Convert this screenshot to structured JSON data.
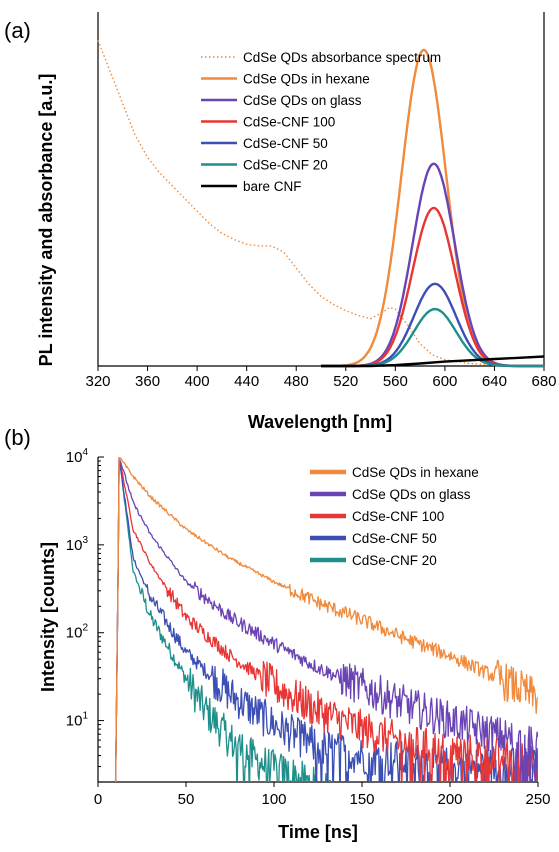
{
  "chart_data": [
    {
      "panel_label": "(a)",
      "type": "line",
      "xlabel": "Wavelength [nm]",
      "ylabel": "PL intensity and absorbance [a.u.]",
      "xlim": [
        320,
        680
      ],
      "ylim": [
        0,
        1.12
      ],
      "xticks": [
        320,
        360,
        400,
        440,
        480,
        520,
        560,
        600,
        640,
        680
      ],
      "y_tick_labels": false,
      "grid": false,
      "legend_position": "top-right",
      "series": [
        {
          "name": "CdSe QDs absorbance spectrum",
          "color": "#f08a3c",
          "style": "dotted",
          "x": [
            320,
            330,
            340,
            350,
            360,
            370,
            380,
            390,
            400,
            410,
            420,
            430,
            440,
            450,
            460,
            470,
            480,
            490,
            500,
            510,
            520,
            530,
            540,
            550,
            555,
            560,
            570,
            580,
            590,
            600,
            620,
            640,
            660,
            680
          ],
          "y": [
            1.03,
            0.93,
            0.83,
            0.73,
            0.66,
            0.61,
            0.57,
            0.53,
            0.49,
            0.45,
            0.42,
            0.4,
            0.385,
            0.38,
            0.38,
            0.36,
            0.31,
            0.26,
            0.22,
            0.195,
            0.175,
            0.16,
            0.15,
            0.17,
            0.185,
            0.18,
            0.13,
            0.07,
            0.035,
            0.02,
            0.008,
            0.003,
            0.0,
            0.0
          ]
        },
        {
          "name": "CdSe QDs in hexane",
          "color": "#f08a3c",
          "style": "solid",
          "peak": 1.0,
          "center": 583,
          "sigma": 18
        },
        {
          "name": "CdSe QDs on glass",
          "color": "#6a44b4",
          "style": "solid",
          "peak": 0.64,
          "center": 591,
          "sigma": 17
        },
        {
          "name": "CdSe-CNF 100",
          "color": "#e83535",
          "style": "solid",
          "peak": 0.5,
          "center": 591,
          "sigma": 17
        },
        {
          "name": "CdSe-CNF 50",
          "color": "#3c4fb4",
          "style": "solid",
          "peak": 0.26,
          "center": 592,
          "sigma": 17
        },
        {
          "name": "CdSe-CNF 20",
          "color": "#1f8f8c",
          "style": "solid",
          "peak": 0.18,
          "center": 592,
          "sigma": 17
        },
        {
          "name": "bare CNF",
          "color": "#000000",
          "style": "solid",
          "x": [
            500,
            540,
            560,
            580,
            600,
            620,
            640,
            660,
            680
          ],
          "y": [
            0.0,
            0.0,
            0.003,
            0.008,
            0.014,
            0.018,
            0.022,
            0.026,
            0.03
          ]
        }
      ]
    },
    {
      "panel_label": "(b)",
      "type": "line",
      "xlabel": "Time [ns]",
      "ylabel": "Intensity [counts]",
      "xlim": [
        0,
        250
      ],
      "ylim": [
        2,
        10000
      ],
      "yscale": "log",
      "xticks": [
        0,
        50,
        100,
        150,
        200,
        250
      ],
      "yticks": [
        {
          "base": "10",
          "exp": "1",
          "value": 10
        },
        {
          "base": "10",
          "exp": "2",
          "value": 100
        },
        {
          "base": "10",
          "exp": "3",
          "value": 1000
        },
        {
          "base": "10",
          "exp": "4",
          "value": 10000
        }
      ],
      "grid": false,
      "legend_position": "top-right",
      "series": [
        {
          "name": "CdSe QDs in hexane",
          "color": "#f08a3c",
          "x": [
            12,
            20,
            30,
            50,
            75,
            100,
            125,
            150,
            175,
            200,
            225,
            250
          ],
          "y": [
            10000,
            6000,
            3500,
            1500,
            700,
            380,
            220,
            140,
            85,
            55,
            32,
            18
          ]
        },
        {
          "name": "CdSe QDs on glass",
          "color": "#6a44b4",
          "x": [
            12,
            20,
            30,
            50,
            75,
            100,
            125,
            150,
            175,
            200,
            225,
            250
          ],
          "y": [
            10000,
            3000,
            1300,
            380,
            150,
            75,
            40,
            24,
            15,
            10,
            7,
            5
          ]
        },
        {
          "name": "CdSe-CNF 100",
          "color": "#e83535",
          "x": [
            12,
            20,
            30,
            50,
            75,
            100,
            125,
            150,
            175,
            200,
            225,
            250
          ],
          "y": [
            10000,
            1500,
            600,
            150,
            55,
            25,
            13,
            8,
            5.5,
            4.5,
            4,
            3.5
          ]
        },
        {
          "name": "CdSe-CNF 50",
          "color": "#3c4fb4",
          "x": [
            12,
            20,
            30,
            50,
            75,
            100,
            125,
            150,
            175,
            200,
            225,
            250
          ],
          "y": [
            10000,
            700,
            250,
            60,
            20,
            9,
            5,
            4,
            3.5,
            3,
            3,
            3
          ]
        },
        {
          "name": "CdSe-CNF 20",
          "color": "#1f8f8c",
          "x": [
            12,
            20,
            30,
            50,
            60,
            75,
            90,
            100,
            110
          ],
          "y": [
            10000,
            500,
            150,
            30,
            14,
            6,
            3.5,
            2.8,
            2.4
          ]
        }
      ]
    }
  ]
}
